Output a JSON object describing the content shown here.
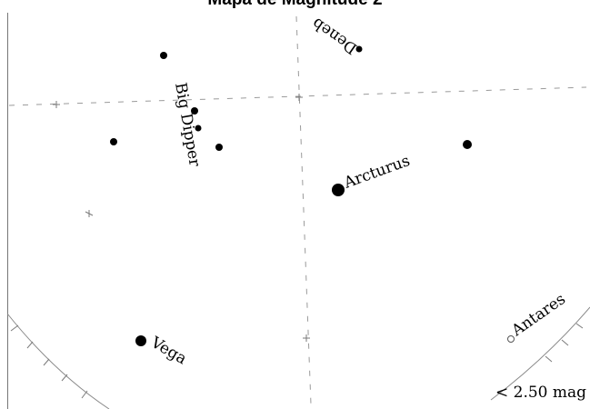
{
  "title": "Mapa de Magnitude 2",
  "magnitude_limit": "< 2.50 mag",
  "constellation_label": "Big Dipper",
  "stars": [
    {
      "name": "Deneb",
      "shown_label": "Deneb"
    },
    {
      "name": "Arcturus",
      "shown_label": "Arcturus"
    },
    {
      "name": "Vega",
      "shown_label": "Vega"
    },
    {
      "name": "Antares",
      "shown_label": "Antares"
    }
  ]
}
